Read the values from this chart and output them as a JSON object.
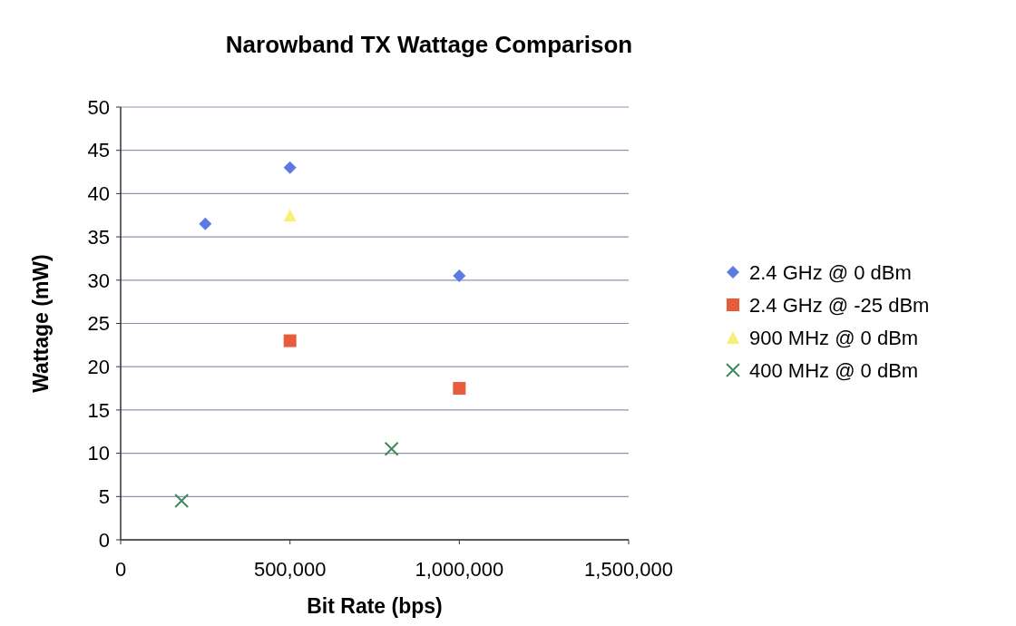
{
  "chart_data": {
    "type": "scatter",
    "title": "Narowband TX Wattage Comparison",
    "xlabel": "Bit Rate (bps)",
    "ylabel": "Wattage (mW)",
    "xlim": [
      0,
      1500000
    ],
    "xticks": [
      {
        "value": 0,
        "label": "0"
      },
      {
        "value": 500000,
        "label": "500,000"
      },
      {
        "value": 1000000,
        "label": "1,000,000"
      },
      {
        "value": 1500000,
        "label": "1,500,000"
      }
    ],
    "ylim": [
      0,
      50
    ],
    "yticks": [
      0,
      5,
      10,
      15,
      20,
      25,
      30,
      35,
      40,
      45,
      50
    ],
    "grid": "y",
    "legend": "right",
    "series": [
      {
        "name": "2.4 GHz @ 0 dBm",
        "color": "#5b7be0",
        "marker": "diamond",
        "x": [
          250000,
          500000,
          1000000
        ],
        "values": [
          36.5,
          43,
          30.5
        ]
      },
      {
        "name": "2.4 GHz @ -25 dBm",
        "color": "#ea5a3c",
        "marker": "square",
        "x": [
          500000,
          1000000
        ],
        "values": [
          23,
          17.5
        ]
      },
      {
        "name": "900 MHz @ 0 dBm",
        "color": "#f5f07a",
        "marker": "triangle",
        "x": [
          500000
        ],
        "values": [
          37.5
        ]
      },
      {
        "name": "400 MHz @ 0 dBm",
        "color": "#3f8a5a",
        "marker": "cross",
        "x": [
          180000,
          800000
        ],
        "values": [
          4.5,
          10.5
        ]
      }
    ]
  }
}
